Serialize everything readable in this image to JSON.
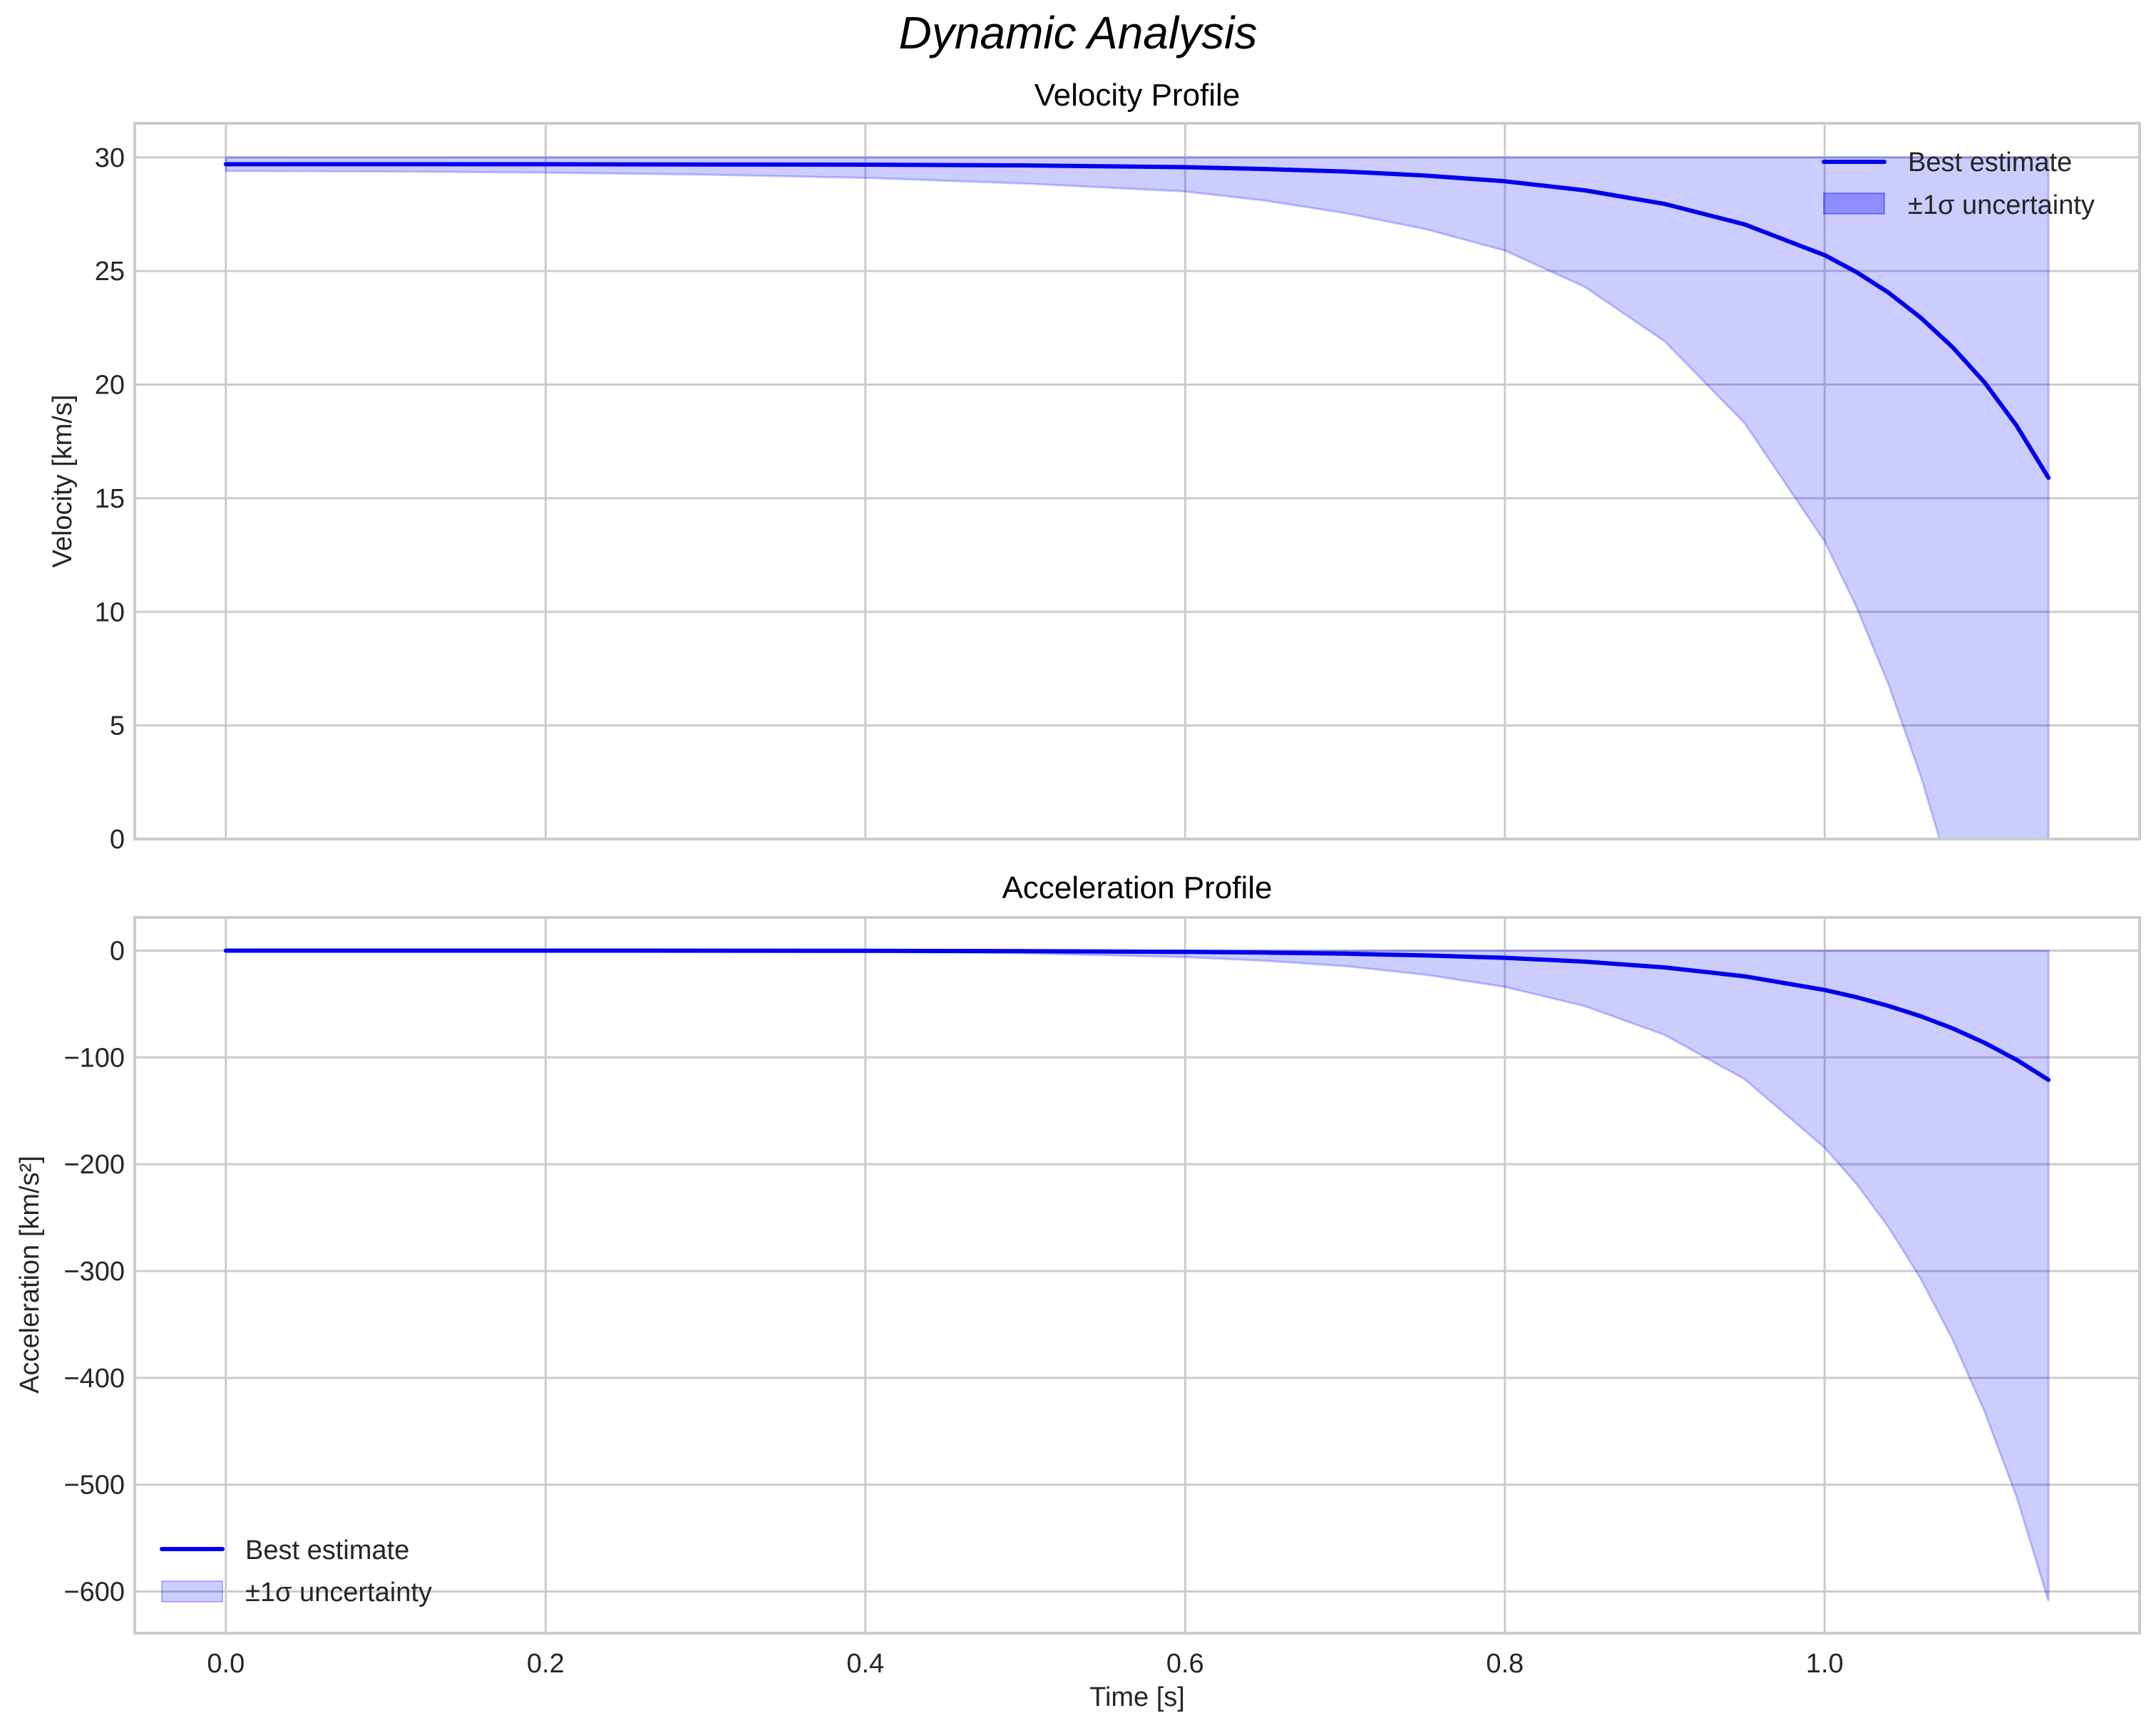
{
  "figure": {
    "suptitle": "Dynamic Analysis",
    "background": "#ffffff",
    "grid_color": "#cccccc",
    "line_color": "#0000ee",
    "band_color": "#0000ff",
    "band_alpha": 0.2
  },
  "legend": {
    "line_label": "Best estimate",
    "band_label": "±1σ uncertainty"
  },
  "chart_data": [
    {
      "type": "line",
      "title": "Velocity Profile",
      "xlabel": "",
      "ylabel": "Velocity [km/s]",
      "xlim": [
        -0.057,
        1.197
      ],
      "ylim": [
        0,
        31.5
      ],
      "xticks": [
        0.0,
        0.2,
        0.4,
        0.6,
        0.8,
        1.0
      ],
      "xtick_labels_visible": false,
      "yticks": [
        0,
        5,
        10,
        15,
        20,
        25,
        30
      ],
      "ytick_labels": [
        "0",
        "5",
        "10",
        "15",
        "20",
        "25",
        "30"
      ],
      "grid": true,
      "legend_position": "upper right",
      "x": [
        0.0,
        0.1,
        0.2,
        0.3,
        0.4,
        0.5,
        0.6,
        0.65,
        0.7,
        0.75,
        0.8,
        0.85,
        0.9,
        0.95,
        1.0,
        1.02,
        1.04,
        1.06,
        1.08,
        1.1,
        1.12,
        1.14
      ],
      "series": [
        {
          "name": "Best estimate",
          "values": [
            29.7,
            29.7,
            29.7,
            29.69,
            29.68,
            29.65,
            29.57,
            29.49,
            29.38,
            29.2,
            28.95,
            28.55,
            27.95,
            27.05,
            25.7,
            24.95,
            24.05,
            22.95,
            21.65,
            20.1,
            18.2,
            15.9
          ]
        },
        {
          "name": "±1σ uncertainty (upper)",
          "values": [
            30.0,
            30.0,
            30.0,
            30.0,
            30.0,
            30.0,
            30.0,
            30.0,
            30.0,
            30.0,
            30.0,
            30.0,
            30.0,
            30.0,
            30.0,
            30.0,
            30.0,
            30.0,
            30.0,
            30.0,
            30.0,
            30.0
          ]
        },
        {
          "name": "±1σ uncertainty (lower)",
          "values": [
            29.4,
            29.38,
            29.33,
            29.24,
            29.1,
            28.85,
            28.5,
            28.1,
            27.55,
            26.85,
            25.9,
            24.3,
            21.9,
            18.3,
            13.1,
            10.2,
            6.8,
            2.8,
            -1.9,
            -7.5,
            -14.2,
            -22.0
          ]
        }
      ]
    },
    {
      "type": "line",
      "title": "Acceleration Profile",
      "xlabel": "Time [s]",
      "ylabel": "Acceleration [km/s²]",
      "xlim": [
        -0.057,
        1.197
      ],
      "ylim": [
        -639,
        31
      ],
      "xticks": [
        0.0,
        0.2,
        0.4,
        0.6,
        0.8,
        1.0
      ],
      "xtick_labels": [
        "0.0",
        "0.2",
        "0.4",
        "0.6",
        "0.8",
        "1.0"
      ],
      "yticks": [
        0,
        -100,
        -200,
        -300,
        -400,
        -500,
        -600
      ],
      "ytick_labels": [
        "0",
        "−100",
        "−200",
        "−300",
        "−400",
        "−500",
        "−600"
      ],
      "grid": true,
      "legend_position": "lower left",
      "x": [
        0.0,
        0.1,
        0.2,
        0.3,
        0.4,
        0.5,
        0.6,
        0.65,
        0.7,
        0.75,
        0.8,
        0.85,
        0.9,
        0.95,
        1.0,
        1.02,
        1.04,
        1.06,
        1.08,
        1.1,
        1.12,
        1.14
      ],
      "series": [
        {
          "name": "Best estimate",
          "values": [
            -0.01,
            -0.02,
            -0.04,
            -0.1,
            -0.22,
            -0.53,
            -1.23,
            -1.9,
            -2.9,
            -4.5,
            -6.8,
            -10.4,
            -15.8,
            -24.1,
            -36.9,
            -43.7,
            -51.8,
            -61.4,
            -72.8,
            -86.3,
            -102.2,
            -121.0
          ]
        },
        {
          "name": "±1σ uncertainty (upper)",
          "values": [
            0,
            0,
            0,
            0,
            0,
            0,
            0,
            0,
            0,
            0,
            0,
            0,
            0,
            0,
            0,
            0,
            0,
            0,
            0,
            0,
            0,
            0
          ]
        },
        {
          "name": "±1σ uncertainty (lower)",
          "values": [
            -0.05,
            -0.1,
            -0.2,
            -0.5,
            -1.1,
            -2.6,
            -6.1,
            -9.5,
            -14.5,
            -22.5,
            -34.0,
            -52.0,
            -79.0,
            -120.5,
            -184.5,
            -218.5,
            -259.0,
            -307.0,
            -364.0,
            -431.5,
            -511.0,
            -609.0
          ]
        }
      ]
    }
  ]
}
